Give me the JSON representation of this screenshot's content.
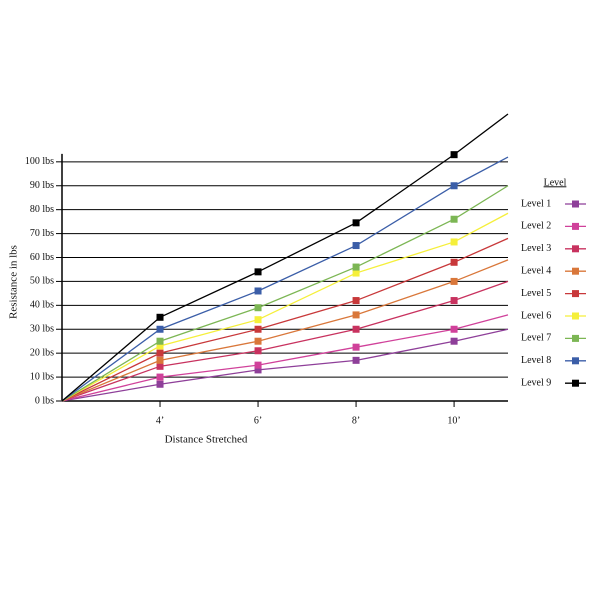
{
  "chart_data": {
    "type": "line",
    "x_label": "Distance Stretched",
    "y_label": "Resistance in lbs",
    "legend_title": "Level",
    "x": [
      2,
      4,
      6,
      8,
      10,
      11.1
    ],
    "xlim": [
      2,
      11.1
    ],
    "xticks": [
      {
        "value": 4,
        "label": "4’"
      },
      {
        "value": 6,
        "label": "6’"
      },
      {
        "value": 8,
        "label": "8’"
      },
      {
        "value": 10,
        "label": "10’"
      }
    ],
    "ylim": [
      0,
      120
    ],
    "yticks": [
      {
        "value": 0,
        "label": "0 lbs"
      },
      {
        "value": 10,
        "label": "10 lbs"
      },
      {
        "value": 20,
        "label": "20 lbs"
      },
      {
        "value": 30,
        "label": "30 lbs"
      },
      {
        "value": 40,
        "label": "40 lbs"
      },
      {
        "value": 50,
        "label": "50 lbs"
      },
      {
        "value": 60,
        "label": "60 lbs"
      },
      {
        "value": 70,
        "label": "70 lbs"
      },
      {
        "value": 80,
        "label": "80 lbs"
      },
      {
        "value": 90,
        "label": "90 lbs"
      },
      {
        "value": 100,
        "label": "100 lbs"
      }
    ],
    "grid": true,
    "legend": "right",
    "series": [
      {
        "name": "Level 1",
        "color": "#8e3f99",
        "values": [
          0,
          7,
          13,
          17,
          25,
          30
        ]
      },
      {
        "name": "Level 2",
        "color": "#d0419a",
        "values": [
          0,
          10,
          15,
          22.5,
          30,
          36
        ]
      },
      {
        "name": "Level 3",
        "color": "#c8325f",
        "values": [
          0,
          14.5,
          21,
          30,
          42,
          50
        ]
      },
      {
        "name": "Level 4",
        "color": "#d9773a",
        "values": [
          0,
          17,
          25,
          36,
          50,
          59
        ]
      },
      {
        "name": "Level 5",
        "color": "#c8383a",
        "values": [
          0,
          20,
          30,
          42,
          58,
          68
        ]
      },
      {
        "name": "Level 6",
        "color": "#f5ef3a",
        "values": [
          0,
          23,
          34,
          53.5,
          66.5,
          78.5
        ]
      },
      {
        "name": "Level 7",
        "color": "#7cb654",
        "values": [
          0,
          25,
          39,
          56,
          76,
          90
        ]
      },
      {
        "name": "Level 8",
        "color": "#3b5ea8",
        "values": [
          0,
          30,
          46,
          65,
          90,
          102
        ]
      },
      {
        "name": "Level 9",
        "color": "#000000",
        "values": [
          0,
          35,
          54,
          74.5,
          103,
          120
        ]
      }
    ]
  }
}
